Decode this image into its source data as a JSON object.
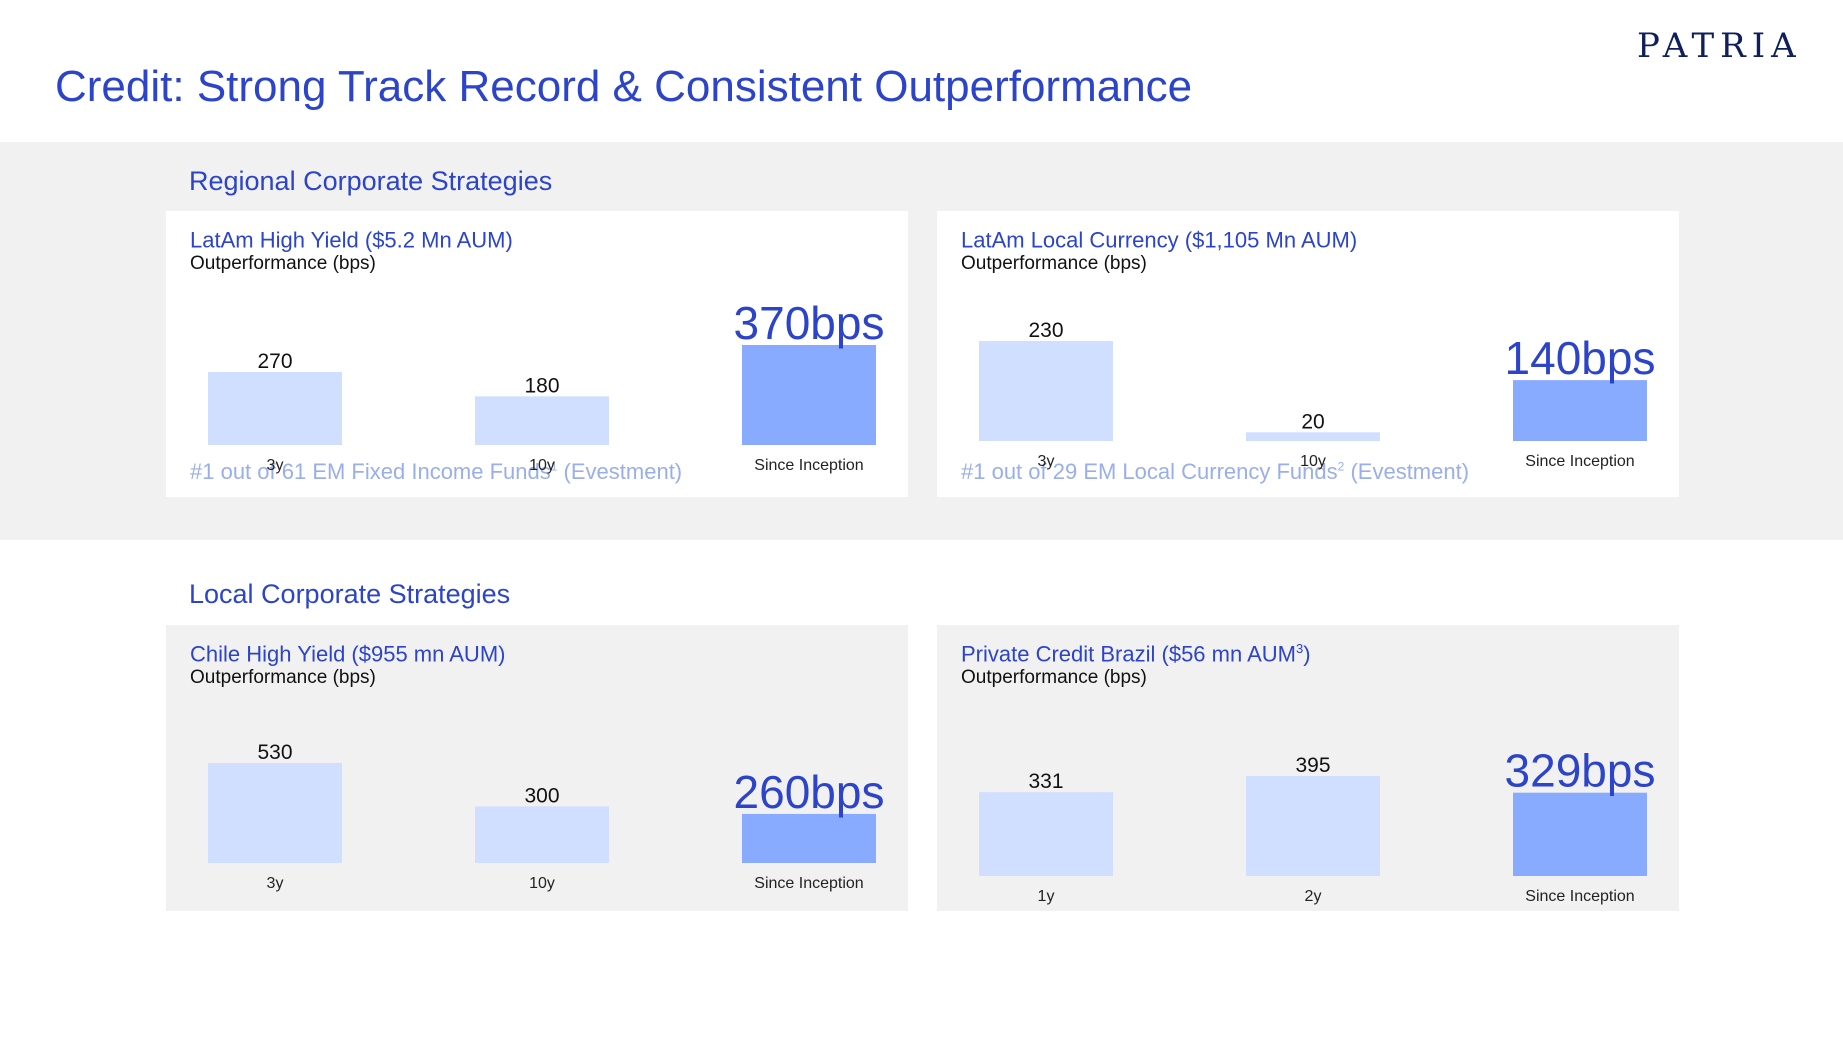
{
  "title": "Credit: Strong Track Record & Consistent Outperformance",
  "logo": "PATRIA",
  "colors": {
    "title": "#2c44c9",
    "bar_light": "#d0deff",
    "bar_accent": "#88aaff",
    "footnote": "#9aaeea",
    "band": "#f1f1f1"
  },
  "sections": {
    "regional": {
      "title": "Regional Corporate Strategies"
    },
    "local": {
      "title": "Local Corporate Strategies"
    }
  },
  "cards": [
    {
      "title": "LatAm High Yield ($5.2 Mn AUM)",
      "title_sup": "",
      "title_suffix": "",
      "subtitle": "Outperformance (bps)",
      "footnote_pre": "#1 out of 61  EM Fixed Income Funds",
      "footnote_sup": "1",
      "footnote_post": " (Evestment)"
    },
    {
      "title": "LatAm Local Currency ($1,105 Mn AUM)",
      "title_sup": "",
      "title_suffix": "",
      "subtitle": "Outperformance (bps)",
      "footnote_pre": "#1 out of 29 EM Local Currency Funds",
      "footnote_sup": "2",
      "footnote_post": " (Evestment)"
    },
    {
      "title": "Chile High Yield ($955 mn AUM)",
      "title_sup": "",
      "title_suffix": "",
      "subtitle": "Outperformance (bps)",
      "footnote_pre": "",
      "footnote_sup": "",
      "footnote_post": ""
    },
    {
      "title": "Private Credit Brazil ($56 mn AUM",
      "title_sup": "3",
      "title_suffix": ")",
      "subtitle": "Outperformance (bps)",
      "footnote_pre": "",
      "footnote_sup": "",
      "footnote_post": ""
    }
  ],
  "chart_data": [
    {
      "type": "bar",
      "title": "LatAm High Yield ($5.2 Mn AUM)",
      "ylabel": "Outperformance (bps)",
      "categories": [
        "3y",
        "10y",
        "Since Inception"
      ],
      "values": [
        270,
        180,
        370
      ],
      "data_labels": [
        "270",
        "180",
        "370bps"
      ],
      "highlight_index": 2,
      "ylim": [
        0,
        400
      ]
    },
    {
      "type": "bar",
      "title": "LatAm Local Currency ($1,105 Mn AUM)",
      "ylabel": "Outperformance (bps)",
      "categories": [
        "3y",
        "10y",
        "Since Inception"
      ],
      "values": [
        230,
        20,
        140
      ],
      "data_labels": [
        "230",
        "20",
        "140bps"
      ],
      "highlight_index": 2,
      "ylim": [
        0,
        400
      ]
    },
    {
      "type": "bar",
      "title": "Chile High Yield ($955 mn AUM)",
      "ylabel": "Outperformance (bps)",
      "categories": [
        "3y",
        "10y",
        "Since Inception"
      ],
      "values": [
        530,
        300,
        260
      ],
      "data_labels": [
        "530",
        "300",
        "260bps"
      ],
      "highlight_index": 2,
      "ylim": [
        0,
        700
      ]
    },
    {
      "type": "bar",
      "title": "Private Credit Brazil ($56 mn AUM3)",
      "ylabel": "Outperformance (bps)",
      "categories": [
        "1y",
        "2y",
        "Since Inception"
      ],
      "values": [
        331,
        395,
        329
      ],
      "data_labels": [
        "331",
        "395",
        "329bps"
      ],
      "highlight_index": 2,
      "ylim": [
        0,
        850
      ]
    }
  ]
}
